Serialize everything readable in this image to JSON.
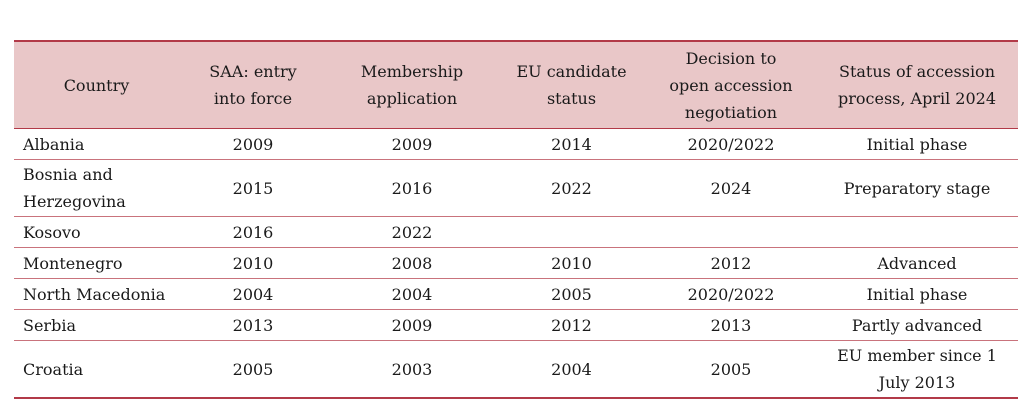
{
  "table": {
    "headers": [
      "Country",
      "SAA: entry into force",
      "Membership application",
      "EU candidate status",
      "Decision to open accession negotiation",
      "Status of accession process, April 2024"
    ],
    "rows": [
      [
        "Albania",
        "2009",
        "2009",
        "2014",
        "2020/2022",
        "Initial phase"
      ],
      [
        "Bosnia and Herzegovina",
        "2015",
        "2016",
        "2022",
        "2024",
        "Preparatory stage"
      ],
      [
        "Kosovo",
        "2016",
        "2022",
        "",
        "",
        ""
      ],
      [
        "Montenegro",
        "2010",
        "2008",
        "2010",
        "2012",
        "Advanced"
      ],
      [
        "North Macedonia",
        "2004",
        "2004",
        "2005",
        "2020/2022",
        "Initial phase"
      ],
      [
        "Serbia",
        "2013",
        "2009",
        "2012",
        "2013",
        "Partly advanced"
      ],
      [
        "Croatia",
        "2005",
        "2003",
        "2004",
        "2005",
        "EU member since 1 July 2013"
      ]
    ]
  },
  "colors": {
    "header_background": "#e9c7c8",
    "rule_color": "#b23a48",
    "row_divider": "#c9737c"
  }
}
